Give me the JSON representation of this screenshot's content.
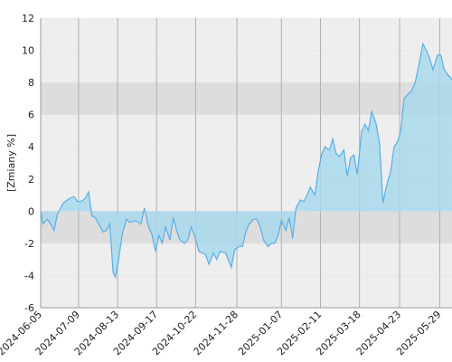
{
  "chart_data": {
    "type": "area",
    "y_label": "[Zmiany %]",
    "color": "#5aaee8",
    "fill": "#a8d8ec",
    "grid": true,
    "ylim": [
      -6,
      12
    ],
    "yticks": [
      -6,
      -4,
      -2,
      0,
      2,
      4,
      6,
      8,
      10,
      12
    ],
    "xlim": [
      "2024-06-05",
      "2025-06-09"
    ],
    "xticks": [
      "2024-06-05",
      "2024-07-09",
      "2024-08-13",
      "2024-09-17",
      "2024-10-22",
      "2024-11-28",
      "2025-01-07",
      "2025-02-11",
      "2025-03-18",
      "2025-04-23",
      "2025-05-29"
    ],
    "x": [
      "2024-06-05",
      "2024-06-07",
      "2024-06-11",
      "2024-06-14",
      "2024-06-17",
      "2024-06-20",
      "2024-06-25",
      "2024-07-01",
      "2024-07-05",
      "2024-07-08",
      "2024-07-11",
      "2024-07-15",
      "2024-07-18",
      "2024-07-21",
      "2024-07-24",
      "2024-07-27",
      "2024-07-31",
      "2024-08-03",
      "2024-08-06",
      "2024-08-09",
      "2024-08-11",
      "2024-08-14",
      "2024-08-17",
      "2024-08-21",
      "2024-08-24",
      "2024-08-29",
      "2024-09-03",
      "2024-09-06",
      "2024-09-09",
      "2024-09-13",
      "2024-09-16",
      "2024-09-19",
      "2024-09-22",
      "2024-09-25",
      "2024-09-29",
      "2024-10-02",
      "2024-10-05",
      "2024-10-08",
      "2024-10-12",
      "2024-10-15",
      "2024-10-18",
      "2024-10-21",
      "2024-10-25",
      "2024-10-28",
      "2024-10-31",
      "2024-11-03",
      "2024-11-07",
      "2024-11-10",
      "2024-11-13",
      "2024-11-18",
      "2024-11-23",
      "2024-11-26",
      "2024-11-30",
      "2024-12-03",
      "2024-12-06",
      "2024-12-09",
      "2024-12-13",
      "2024-12-16",
      "2024-12-19",
      "2024-12-22",
      "2024-12-26",
      "2024-12-29",
      "2025-01-01",
      "2025-01-04",
      "2025-01-07",
      "2025-01-11",
      "2025-01-14",
      "2025-01-17",
      "2025-01-20",
      "2025-01-24",
      "2025-01-27",
      "2025-01-30",
      "2025-02-02",
      "2025-02-06",
      "2025-02-09",
      "2025-02-12",
      "2025-02-15",
      "2025-02-19",
      "2025-02-22",
      "2025-02-25",
      "2025-02-28",
      "2025-03-04",
      "2025-03-07",
      "2025-03-10",
      "2025-03-13",
      "2025-03-16",
      "2025-03-20",
      "2025-03-23",
      "2025-03-26",
      "2025-03-29",
      "2025-04-02",
      "2025-04-05",
      "2025-04-08",
      "2025-04-11",
      "2025-04-15",
      "2025-04-18",
      "2025-04-21",
      "2025-04-24",
      "2025-04-27",
      "2025-05-01",
      "2025-05-04",
      "2025-05-07",
      "2025-05-10",
      "2025-05-14",
      "2025-05-17",
      "2025-05-20",
      "2025-05-23",
      "2025-05-27",
      "2025-05-30",
      "2025-06-02",
      "2025-06-05",
      "2025-06-09"
    ],
    "values": [
      0,
      -0.8,
      -0.5,
      -0.8,
      -1.2,
      -0.2,
      0.5,
      0.8,
      0.9,
      0.6,
      0.6,
      0.8,
      1.2,
      -0.3,
      -0.4,
      -0.8,
      -1.3,
      -1.2,
      -0.8,
      -3.8,
      -4.1,
      -3.0,
      -1.5,
      -0.5,
      -0.7,
      -0.6,
      -0.8,
      0.2,
      -0.8,
      -1.5,
      -2.5,
      -1.5,
      -2.0,
      -1.0,
      -1.8,
      -0.4,
      -1.2,
      -1.8,
      -2.0,
      -1.8,
      -1.0,
      -1.5,
      -2.5,
      -2.6,
      -2.7,
      -3.3,
      -2.6,
      -3.0,
      -2.5,
      -2.6,
      -3.5,
      -2.4,
      -2.2,
      -2.2,
      -1.3,
      -0.8,
      -0.5,
      -0.5,
      -1.0,
      -1.8,
      -2.2,
      -2.0,
      -2.0,
      -1.5,
      -0.6,
      -1.2,
      -0.4,
      -1.7,
      0.2,
      0.7,
      0.6,
      1.0,
      1.5,
      1.0,
      2.5,
      3.5,
      4.0,
      3.8,
      4.5,
      3.6,
      3.4,
      3.8,
      2.2,
      3.3,
      3.5,
      2.3,
      5.0,
      5.4,
      5.0,
      6.2,
      5.4,
      4.2,
      0.5,
      1.5,
      2.5,
      4.0,
      4.3,
      5.0,
      7.0,
      7.3,
      7.5,
      8.0,
      9.0,
      10.4,
      10.0,
      9.5,
      8.8,
      9.7,
      9.7,
      8.8,
      8.5,
      8.2
    ]
  }
}
